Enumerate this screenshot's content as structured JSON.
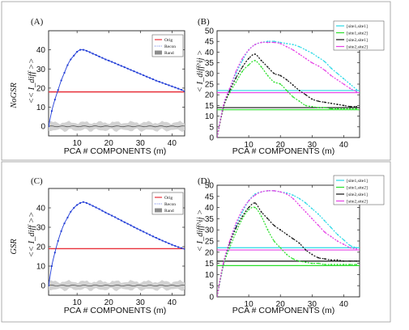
{
  "figure": {
    "row_labels": [
      "NoGSR",
      "GSR"
    ],
    "panel_labels": [
      "(A)",
      "(B)",
      "(C)",
      "(D)"
    ],
    "left_ylabel": "<< I_diff >>",
    "right_ylabel": "< I_diff^ij >",
    "xlabel": "PCA # COMPONENTS (m)"
  },
  "chart_data": [
    {
      "panel": "(A)",
      "type": "line",
      "xlabel": "PCA # COMPONENTS (m)",
      "ylabel": "<< I_diff >>",
      "xlim": [
        1,
        44
      ],
      "ylim": [
        -5,
        50
      ],
      "xticks": [
        10,
        20,
        30,
        40
      ],
      "yticks": [
        0,
        10,
        20,
        30,
        40
      ],
      "legend_position": "top-right",
      "series": [
        {
          "name": "Orig",
          "color": "#e8303a",
          "style": "hline",
          "y": 18
        },
        {
          "name": "Recon",
          "color": "#1f3bd6",
          "style": "dotted-line",
          "x": [
            1,
            2,
            3,
            4,
            5,
            6,
            7,
            8,
            9,
            10,
            11,
            12,
            13,
            14,
            15,
            16,
            17,
            18,
            19,
            20,
            21,
            22,
            23,
            24,
            25,
            26,
            27,
            28,
            29,
            30,
            31,
            32,
            33,
            34,
            35,
            36,
            37,
            38,
            39,
            40,
            41,
            42,
            43,
            44
          ],
          "y": [
            0,
            8,
            14,
            19,
            24,
            28,
            32,
            35,
            37,
            39,
            40,
            40,
            39.5,
            38.8,
            38,
            37.3,
            36.5,
            35.8,
            35,
            34.4,
            33.7,
            33,
            32.3,
            31.6,
            30.9,
            30.2,
            29.5,
            28.8,
            28.1,
            27.4,
            26.7,
            26,
            25.3,
            24.6,
            23.9,
            23.3,
            22.7,
            22.1,
            21.5,
            20.9,
            20.3,
            19.7,
            19.1,
            18.3
          ]
        },
        {
          "name": "Rand",
          "color": "#8c8c8c",
          "style": "band",
          "y": 0,
          "band": [
            -2,
            2
          ]
        }
      ]
    },
    {
      "panel": "(B)",
      "type": "line",
      "xlabel": "PCA # COMPONENTS (m)",
      "ylabel": "< I_diff^ij >",
      "xlim": [
        0,
        45
      ],
      "ylim": [
        0,
        50
      ],
      "xticks": [
        10,
        20,
        30,
        40
      ],
      "yticks": [
        0,
        5,
        10,
        15,
        20,
        25,
        30,
        35,
        40,
        45,
        50
      ],
      "legend_position": "top-right",
      "series": [
        {
          "name": "[site1,site1]",
          "color": "#2ad9e6",
          "hline": 22,
          "x": [
            0,
            2,
            4,
            6,
            8,
            10,
            12,
            14,
            16,
            18,
            20,
            22,
            24,
            26,
            28,
            30,
            32,
            34,
            36,
            38,
            40,
            42,
            44
          ],
          "y": [
            0,
            15,
            23,
            30,
            36,
            41,
            43.5,
            44.5,
            45,
            45,
            44.5,
            44,
            43.5,
            42.5,
            41,
            39.5,
            37.5,
            35.5,
            32.5,
            30,
            27.5,
            25,
            22.5
          ]
        },
        {
          "name": "[site1,site2]",
          "color": "#2adf2a",
          "hline": 13,
          "x": [
            0,
            2,
            4,
            6,
            8,
            10,
            12,
            14,
            16,
            18,
            20,
            22,
            24,
            26,
            28,
            30,
            32,
            34,
            36,
            38,
            40,
            42,
            44
          ],
          "y": [
            0,
            14,
            21,
            26,
            31,
            34,
            36,
            33,
            29,
            26,
            25,
            22,
            19,
            17,
            15,
            14.5,
            14,
            14,
            13.5,
            13.5,
            13.5,
            13.5,
            13.5
          ]
        },
        {
          "name": "[site2,site1]",
          "color": "#111111",
          "hline": 14,
          "x": [
            0,
            2,
            4,
            6,
            8,
            10,
            12,
            14,
            16,
            18,
            20,
            22,
            24,
            26,
            28,
            30,
            32,
            34,
            36,
            38,
            40,
            42,
            44
          ],
          "y": [
            0,
            14,
            22,
            28,
            33,
            37,
            39,
            36,
            33,
            30,
            29,
            27,
            24.5,
            22,
            20,
            18,
            17,
            16.5,
            16,
            15.5,
            15,
            14.5,
            14.5
          ]
        },
        {
          "name": "[site2,site2]",
          "color": "#e640e6",
          "hline": 21,
          "x": [
            0,
            2,
            4,
            6,
            8,
            10,
            12,
            14,
            16,
            18,
            20,
            22,
            24,
            26,
            28,
            30,
            32,
            34,
            36,
            38,
            40,
            42,
            44
          ],
          "y": [
            0,
            15,
            23,
            31,
            37,
            41,
            43.5,
            44.5,
            44.5,
            44.5,
            44,
            42.5,
            41,
            39,
            37,
            35,
            33.5,
            31.5,
            29,
            27,
            25,
            23,
            21.5
          ]
        }
      ]
    },
    {
      "panel": "(C)",
      "type": "line",
      "xlabel": "PCA # COMPONENTS (m)",
      "ylabel": "<< I_diff >>",
      "xlim": [
        1,
        44
      ],
      "ylim": [
        -5,
        50
      ],
      "xticks": [
        10,
        20,
        30,
        40
      ],
      "yticks": [
        0,
        10,
        20,
        30,
        40
      ],
      "legend_position": "top-right",
      "series": [
        {
          "name": "Orig",
          "color": "#e8303a",
          "style": "hline",
          "y": 19
        },
        {
          "name": "Recon",
          "color": "#1f3bd6",
          "style": "dotted-line",
          "x": [
            1,
            2,
            3,
            4,
            5,
            6,
            7,
            8,
            9,
            10,
            11,
            12,
            13,
            14,
            15,
            16,
            17,
            18,
            19,
            20,
            21,
            22,
            23,
            24,
            25,
            26,
            27,
            28,
            29,
            30,
            31,
            32,
            33,
            34,
            35,
            36,
            37,
            38,
            39,
            40,
            41,
            42,
            43,
            44
          ],
          "y": [
            0,
            10,
            17,
            23,
            28,
            32,
            35,
            38,
            40,
            41.5,
            42.5,
            43,
            42.5,
            41.8,
            41,
            40.2,
            39.4,
            38.5,
            37.6,
            36.8,
            36,
            35.2,
            34.3,
            33.5,
            32.6,
            31.8,
            31,
            30.1,
            29.3,
            28.5,
            27.7,
            26.9,
            26.1,
            25.3,
            24.6,
            23.8,
            23.1,
            22.4,
            21.7,
            21,
            20.4,
            19.8,
            19.3,
            18.8
          ]
        },
        {
          "name": "Rand",
          "color": "#8c8c8c",
          "style": "band",
          "y": 0,
          "band": [
            -2,
            2
          ]
        }
      ]
    },
    {
      "panel": "(D)",
      "type": "line",
      "xlabel": "PCA # COMPONENTS (m)",
      "ylabel": "< I_diff^ij >",
      "xlim": [
        0,
        45
      ],
      "ylim": [
        0,
        50
      ],
      "xticks": [
        10,
        20,
        30,
        40
      ],
      "yticks": [
        0,
        5,
        10,
        15,
        20,
        25,
        30,
        35,
        40,
        45,
        50
      ],
      "legend_position": "top-right",
      "series": [
        {
          "name": "[site1,site1]",
          "color": "#2ad9e6",
          "hline": 22,
          "x": [
            0,
            2,
            4,
            6,
            8,
            10,
            12,
            14,
            16,
            18,
            20,
            22,
            24,
            26,
            28,
            30,
            32,
            34,
            36,
            38,
            40,
            42,
            44
          ],
          "y": [
            0,
            14,
            24,
            32,
            38,
            43,
            46,
            47,
            47.5,
            47.5,
            47,
            46.5,
            45.5,
            44,
            42,
            39.5,
            37,
            34,
            31,
            28,
            25.5,
            23,
            22
          ]
        },
        {
          "name": "[site1,site2]",
          "color": "#2adf2a",
          "hline": 14,
          "x": [
            0,
            2,
            4,
            6,
            8,
            10,
            12,
            14,
            16,
            18,
            20,
            22,
            24,
            26,
            28,
            30,
            32,
            34,
            36,
            38,
            40,
            42,
            44
          ],
          "y": [
            0,
            14,
            22,
            29,
            35,
            39,
            40,
            36,
            30,
            25,
            22,
            19,
            17,
            16,
            15.5,
            15,
            15,
            14.5,
            14.5,
            14.5,
            14.5,
            14.5,
            14.5
          ]
        },
        {
          "name": "[site2,site1]",
          "color": "#111111",
          "hline": 16,
          "x": [
            0,
            2,
            4,
            6,
            8,
            10,
            12,
            14,
            16,
            18,
            20,
            22,
            24,
            26,
            28,
            30,
            32,
            34,
            36,
            38,
            40,
            42,
            44
          ],
          "y": [
            0,
            15,
            24,
            31,
            36,
            40,
            42,
            38,
            35,
            32,
            30,
            28,
            26,
            24,
            21,
            19,
            17.5,
            17,
            16.5,
            16.5,
            16,
            16,
            16
          ]
        },
        {
          "name": "[site2,site2]",
          "color": "#e640e6",
          "hline": 21,
          "x": [
            0,
            2,
            4,
            6,
            8,
            10,
            12,
            14,
            16,
            18,
            20,
            22,
            24,
            26,
            28,
            30,
            32,
            34,
            36,
            38,
            40,
            42,
            44
          ],
          "y": [
            0,
            15,
            25,
            33,
            39,
            43,
            45.5,
            47,
            47.5,
            47.5,
            47,
            46,
            44,
            41,
            38,
            35,
            32,
            29,
            27,
            25,
            23.5,
            22,
            21.5
          ]
        }
      ]
    }
  ]
}
